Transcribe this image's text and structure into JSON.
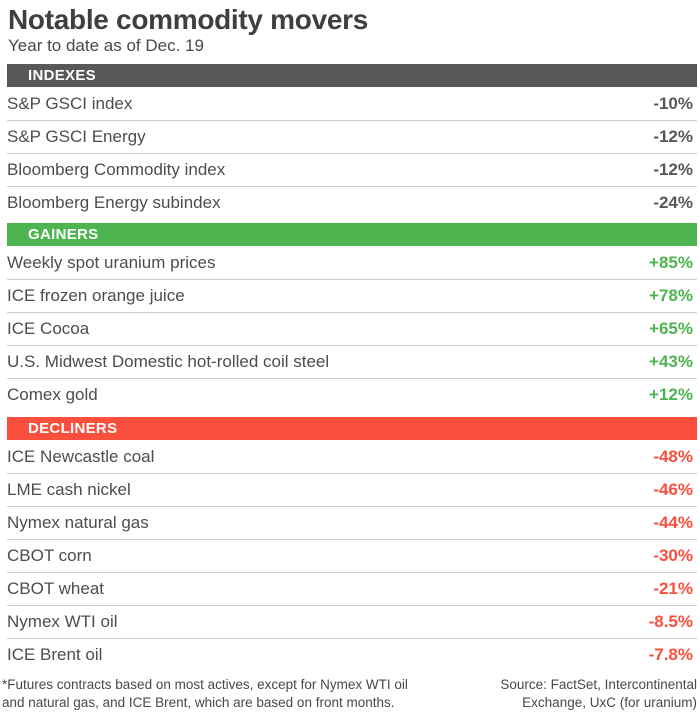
{
  "page": {
    "title": "Notable commodity movers",
    "subtitle": "Year to date as of Dec. 19"
  },
  "colors": {
    "header_gray": "#58585a",
    "gainers_green": "#4db450",
    "decliners_red": "#fb4f3e",
    "row_label_gray": "#4d4d4f",
    "separator_gray": "#cccccc",
    "title_gray": "#3f3f41"
  },
  "sections": [
    {
      "label": "INDEXES",
      "bar_color": "#58585a",
      "value_color": "#58585a",
      "rows": [
        {
          "label": "S&P GSCI index",
          "value": "-10%"
        },
        {
          "label": "S&P GSCI Energy",
          "value": "-12%"
        },
        {
          "label": "Bloomberg Commodity index",
          "value": "-12%"
        },
        {
          "label": "Bloomberg Energy subindex",
          "value": "-24%"
        }
      ]
    },
    {
      "label": "GAINERS",
      "bar_color": "#4db450",
      "value_color": "#4db450",
      "rows": [
        {
          "label": "Weekly spot uranium prices",
          "value": "+85%"
        },
        {
          "label": "ICE frozen orange juice",
          "value": "+78%"
        },
        {
          "label": "ICE Cocoa",
          "value": "+65%"
        },
        {
          "label": "U.S. Midwest Domestic hot-rolled coil steel",
          "value": "+43%"
        },
        {
          "label": "Comex gold",
          "value": "+12%"
        }
      ]
    },
    {
      "label": "DECLINERS",
      "bar_color": "#fb4f3e",
      "value_color": "#fb4f3e",
      "rows": [
        {
          "label": "ICE Newcastle coal",
          "value": "-48%"
        },
        {
          "label": "LME cash nickel",
          "value": "-46%"
        },
        {
          "label": "Nymex natural gas",
          "value": "-44%"
        },
        {
          "label": "CBOT corn",
          "value": "-30%"
        },
        {
          "label": "CBOT wheat",
          "value": "-21%"
        },
        {
          "label": "Nymex WTI oil",
          "value": "-8.5%"
        },
        {
          "label": "ICE Brent oil",
          "value": "-7.8%"
        }
      ]
    }
  ],
  "footer": {
    "note": "*Futures contracts based on most actives, except for Nymex WTI oil and natural gas, and ICE Brent, which are based on front months.",
    "source": "Source: FactSet, Intercontinental Exchange, UxC (for uranium)"
  },
  "chart_data": {
    "type": "table",
    "title": "Notable commodity movers",
    "subtitle": "Year to date as of Dec. 19",
    "value_unit": "% change year to date as of Dec. 19",
    "sections": [
      {
        "name": "INDEXES",
        "rows": [
          {
            "label": "S&P GSCI index",
            "pct_change": -10
          },
          {
            "label": "S&P GSCI Energy",
            "pct_change": -12
          },
          {
            "label": "Bloomberg Commodity index",
            "pct_change": -12
          },
          {
            "label": "Bloomberg Energy subindex",
            "pct_change": -24
          }
        ]
      },
      {
        "name": "GAINERS",
        "rows": [
          {
            "label": "Weekly spot uranium prices",
            "pct_change": 85
          },
          {
            "label": "ICE frozen orange juice",
            "pct_change": 78
          },
          {
            "label": "ICE Cocoa",
            "pct_change": 65
          },
          {
            "label": "U.S. Midwest Domestic hot-rolled coil steel",
            "pct_change": 43
          },
          {
            "label": "Comex gold",
            "pct_change": 12
          }
        ]
      },
      {
        "name": "DECLINERS",
        "rows": [
          {
            "label": "ICE Newcastle coal",
            "pct_change": -48
          },
          {
            "label": "LME cash nickel",
            "pct_change": -46
          },
          {
            "label": "Nymex natural gas",
            "pct_change": -44
          },
          {
            "label": "CBOT corn",
            "pct_change": -30
          },
          {
            "label": "CBOT wheat",
            "pct_change": -21
          },
          {
            "label": "Nymex WTI oil",
            "pct_change": -8.5
          },
          {
            "label": "ICE Brent oil",
            "pct_change": -7.8
          }
        ]
      }
    ]
  }
}
